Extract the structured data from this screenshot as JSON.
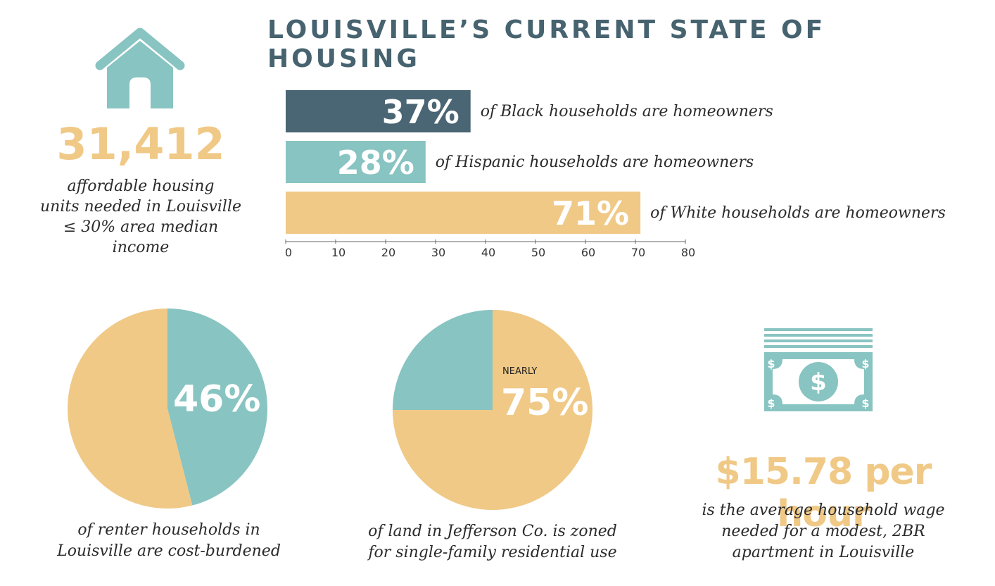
{
  "title": "LOUISVILLE’S CURRENT STATE OF HOUSING",
  "colors": {
    "dark": "#4a6573",
    "teal": "#88c4c1",
    "yellow": "#f0c987",
    "title": "#46636f"
  },
  "icons": {
    "house": "house-icon",
    "money": "dollar-bill-icon"
  },
  "units": {
    "value": "31,412",
    "caption_lines": [
      "affordable housing",
      "units needed in Louisville",
      "≤ 30% area median",
      "income"
    ]
  },
  "chart_data": [
    {
      "type": "bar",
      "orientation": "horizontal",
      "categories": [
        "Black",
        "Hispanic",
        "White"
      ],
      "values": [
        37,
        28,
        71
      ],
      "value_labels": [
        "37%",
        "28%",
        "71%"
      ],
      "bar_labels": [
        "of Black households are homeowners",
        "of Hispanic households are homeowners",
        "of White households are homeowners"
      ],
      "bar_colors": [
        "#4a6573",
        "#88c4c1",
        "#f0c987"
      ],
      "xlim": [
        0,
        80
      ],
      "xticks": [
        0,
        10,
        20,
        30,
        40,
        50,
        60,
        70,
        80
      ],
      "grid": false
    },
    {
      "type": "pie",
      "values": [
        46,
        54
      ],
      "colors": [
        "#88c4c1",
        "#f0c987"
      ],
      "label": "46%",
      "caption_lines": [
        "of renter households in",
        "Louisville are cost-burdened"
      ]
    },
    {
      "type": "pie",
      "values": [
        75,
        25
      ],
      "colors": [
        "#f0c987",
        "#88c4c1"
      ],
      "prefix": "NEARLY",
      "label": "75%",
      "caption_lines": [
        "of land in Jefferson Co. is zoned",
        "for single-family residential use"
      ]
    }
  ],
  "wage": {
    "value": "$15.78 per hour",
    "caption_lines": [
      "is the average household wage",
      "needed for a modest, 2BR",
      "apartment in Louisville"
    ]
  }
}
